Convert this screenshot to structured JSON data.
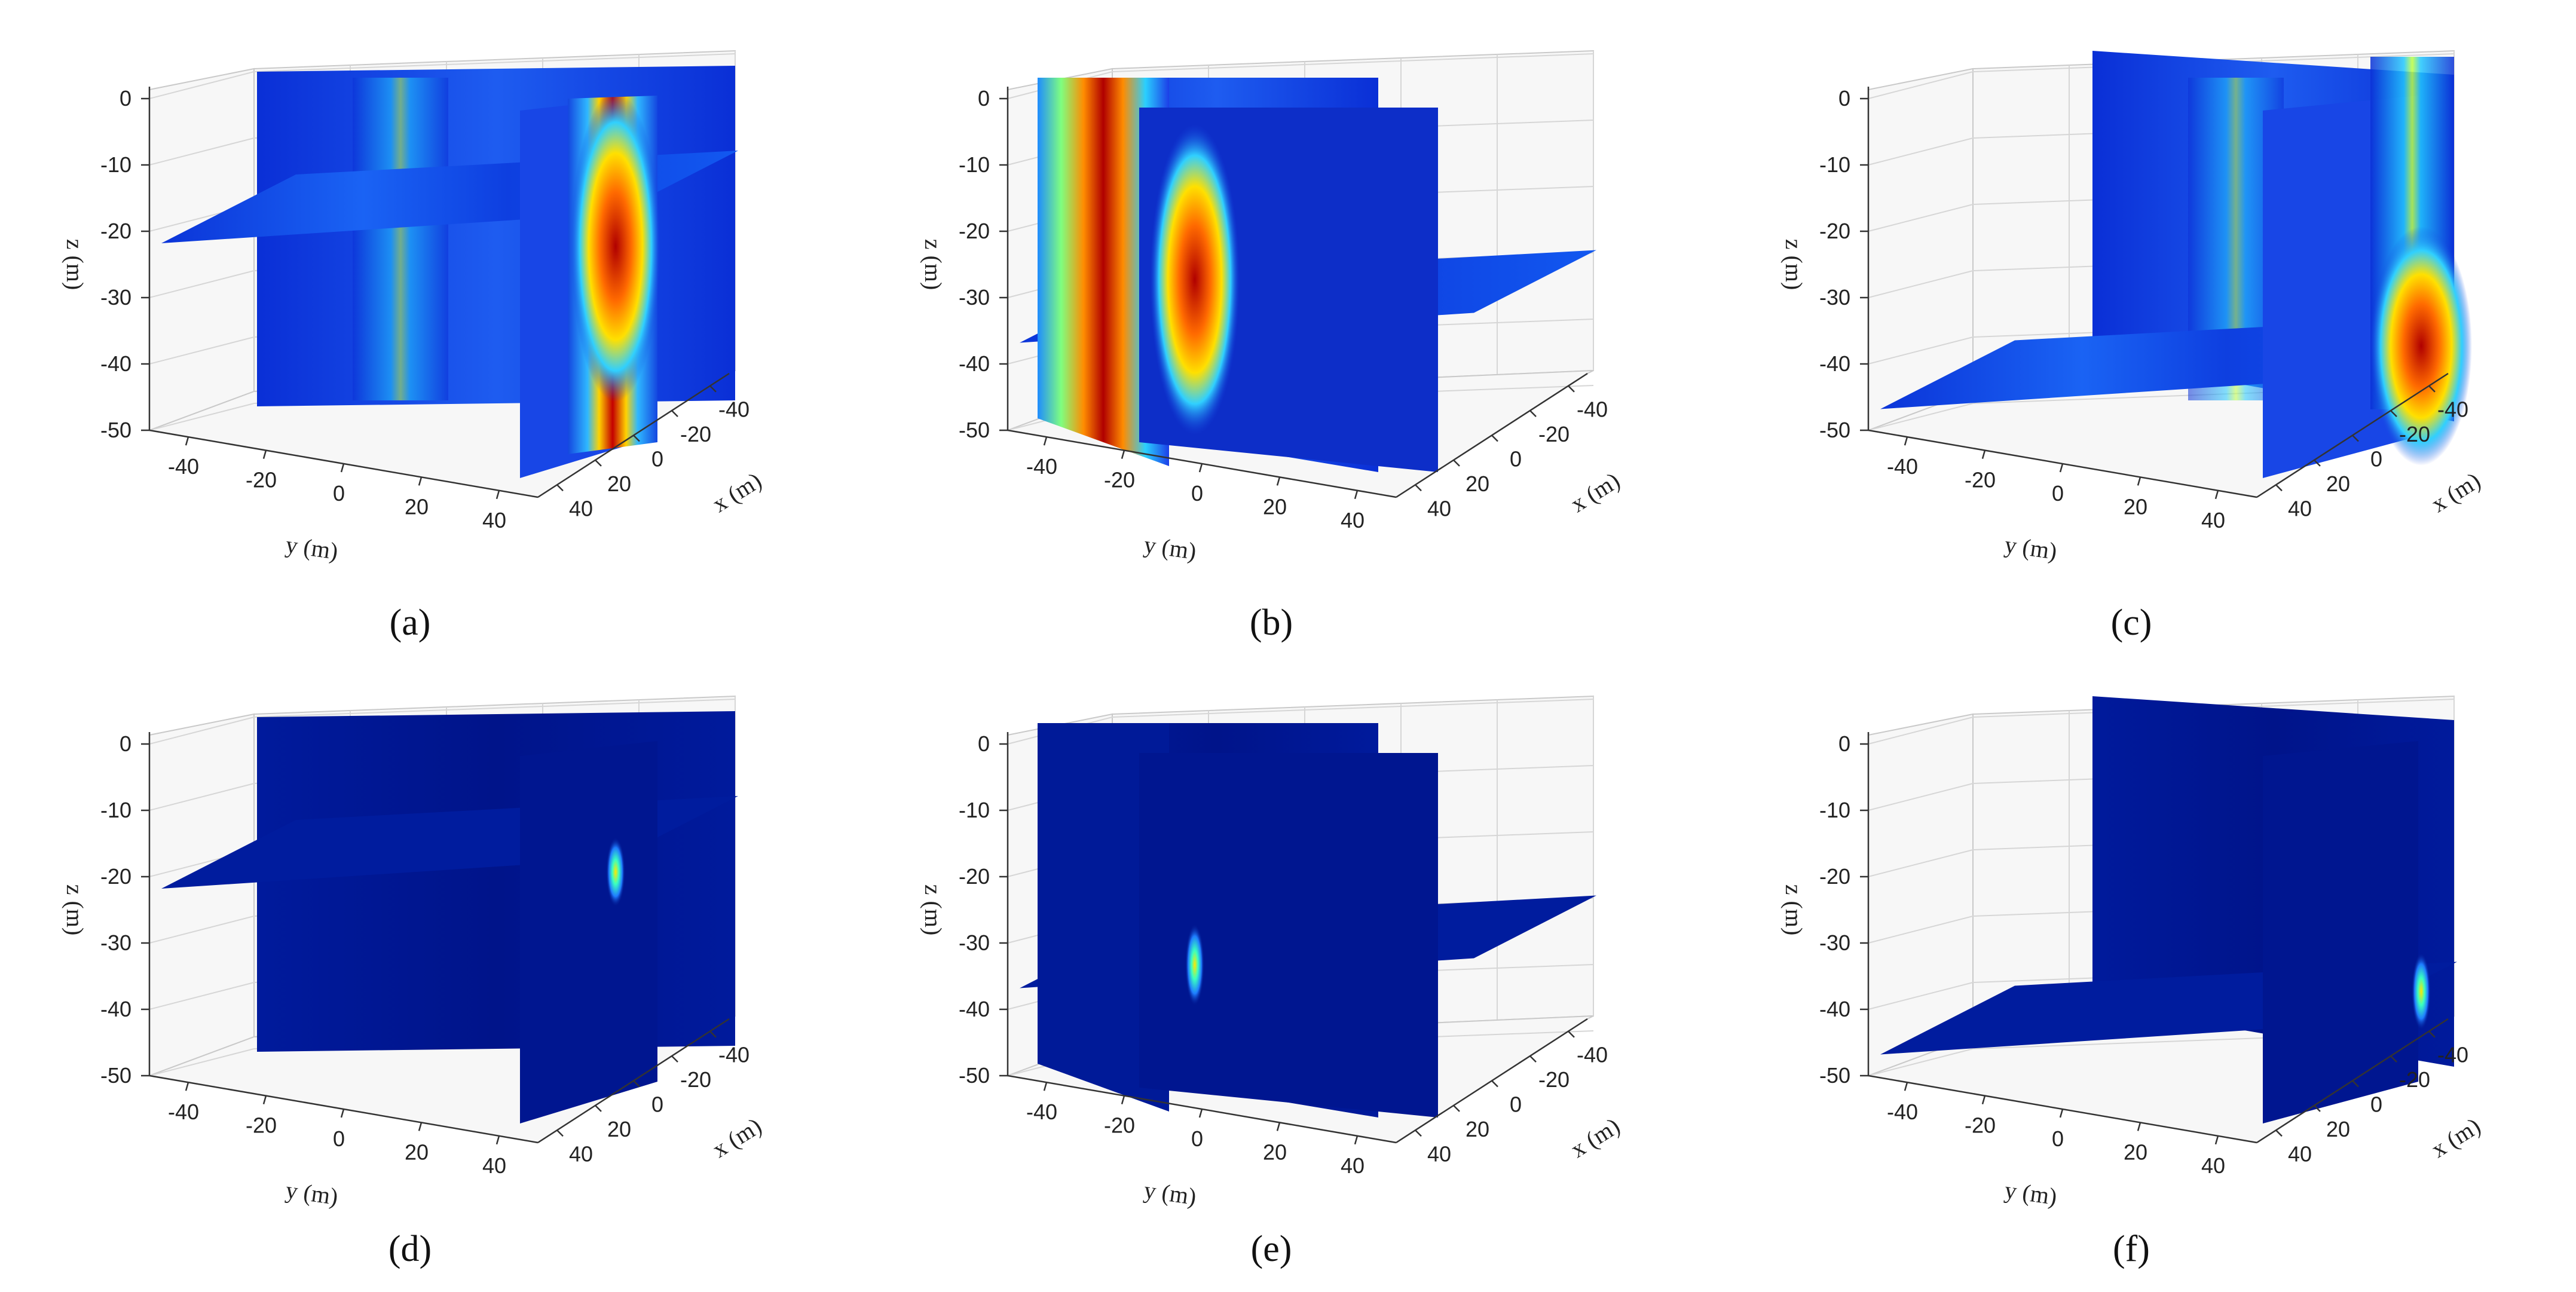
{
  "chart_data": [
    {
      "type": "heatmap",
      "subcaption": "(a)",
      "zlabel": "z (m)",
      "ylabel": "y (m)",
      "xlabel": "x (m)",
      "z_ticks": [
        "0",
        "-10",
        "-20",
        "-30",
        "-40",
        "-50"
      ],
      "y_ticks": [
        "-40",
        "-20",
        "0",
        "20",
        "40"
      ],
      "x_ticks": [
        "-40",
        "-20",
        "0",
        "20",
        "40"
      ],
      "zlim": [
        -50,
        0
      ],
      "ylim": [
        -50,
        50
      ],
      "xlim": [
        -50,
        50
      ],
      "slices": {
        "x_plane": 25,
        "y_plane": 30,
        "z_plane": -20
      },
      "anomaly": {
        "y": 30,
        "z": -25,
        "peak": 1.0
      },
      "colormap": "jet"
    },
    {
      "type": "heatmap",
      "subcaption": "(b)",
      "zlabel": "z (m)",
      "ylabel": "y (m)",
      "xlabel": "x (m)",
      "z_ticks": [
        "0",
        "-10",
        "-20",
        "-30",
        "-40",
        "-50"
      ],
      "y_ticks": [
        "-40",
        "-20",
        "0",
        "20",
        "40"
      ],
      "x_ticks": [
        "-40",
        "-20",
        "0",
        "20",
        "40"
      ],
      "zlim": [
        -50,
        0
      ],
      "ylim": [
        -50,
        50
      ],
      "xlim": [
        -50,
        50
      ],
      "slices": {
        "x_plane": 0,
        "y_plane": -10,
        "z_plane": -35
      },
      "anomaly": {
        "y": -18,
        "z": -30,
        "peak": 1.0
      },
      "colormap": "jet"
    },
    {
      "type": "heatmap",
      "subcaption": "(c)",
      "zlabel": "z (m)",
      "ylabel": "y (m)",
      "xlabel": "x (m)",
      "z_ticks": [
        "0",
        "-10",
        "-20",
        "-30",
        "-40",
        "-50"
      ],
      "y_ticks": [
        "-40",
        "-20",
        "0",
        "20",
        "40"
      ],
      "x_ticks": [
        "-40",
        "-20",
        "0",
        "20",
        "40"
      ],
      "zlim": [
        -50,
        0
      ],
      "ylim": [
        -50,
        50
      ],
      "xlim": [
        -50,
        50
      ],
      "slices": {
        "x_plane": 20,
        "y_plane": 30,
        "z_plane": -45
      },
      "anomaly": {
        "y": 30,
        "z": -40,
        "peak": 1.0
      },
      "colormap": "jet"
    },
    {
      "type": "heatmap",
      "subcaption": "(d)",
      "zlabel": "z (m)",
      "ylabel": "y (m)",
      "xlabel": "x (m)",
      "z_ticks": [
        "0",
        "-10",
        "-20",
        "-30",
        "-40",
        "-50"
      ],
      "y_ticks": [
        "-40",
        "-20",
        "0",
        "20",
        "40"
      ],
      "x_ticks": [
        "-40",
        "-20",
        "0",
        "20",
        "40"
      ],
      "zlim": [
        -50,
        0
      ],
      "ylim": [
        -50,
        50
      ],
      "xlim": [
        -50,
        50
      ],
      "slices": {
        "x_plane": 25,
        "y_plane": 30,
        "z_plane": -20
      },
      "anomaly": {
        "y": 30,
        "z": -22,
        "peak": 0.55
      },
      "colormap": "jet"
    },
    {
      "type": "heatmap",
      "subcaption": "(e)",
      "zlabel": "z (m)",
      "ylabel": "y (m)",
      "xlabel": "x (m)",
      "z_ticks": [
        "0",
        "-10",
        "-20",
        "-30",
        "-40",
        "-50"
      ],
      "y_ticks": [
        "-40",
        "-20",
        "0",
        "20",
        "40"
      ],
      "x_ticks": [
        "-40",
        "-20",
        "0",
        "20",
        "40"
      ],
      "zlim": [
        -50,
        0
      ],
      "ylim": [
        -50,
        50
      ],
      "xlim": [
        -50,
        50
      ],
      "slices": {
        "x_plane": 0,
        "y_plane": -10,
        "z_plane": -35
      },
      "anomaly": {
        "y": -18,
        "z": -36,
        "peak": 0.7
      },
      "colormap": "jet"
    },
    {
      "type": "heatmap",
      "subcaption": "(f)",
      "zlabel": "z (m)",
      "ylabel": "y (m)",
      "xlabel": "x (m)",
      "z_ticks": [
        "0",
        "-10",
        "-20",
        "-30",
        "-40",
        "-50"
      ],
      "y_ticks": [
        "-40",
        "-20",
        "0",
        "20",
        "40"
      ],
      "x_ticks": [
        "-40",
        "-20",
        "0",
        "20",
        "40"
      ],
      "zlim": [
        -50,
        0
      ],
      "ylim": [
        -50,
        50
      ],
      "xlim": [
        -50,
        50
      ],
      "slices": {
        "x_plane": 20,
        "y_plane": 30,
        "z_plane": -45
      },
      "anomaly": {
        "y": 30,
        "z": -40,
        "peak": 0.65
      },
      "colormap": "jet"
    }
  ]
}
